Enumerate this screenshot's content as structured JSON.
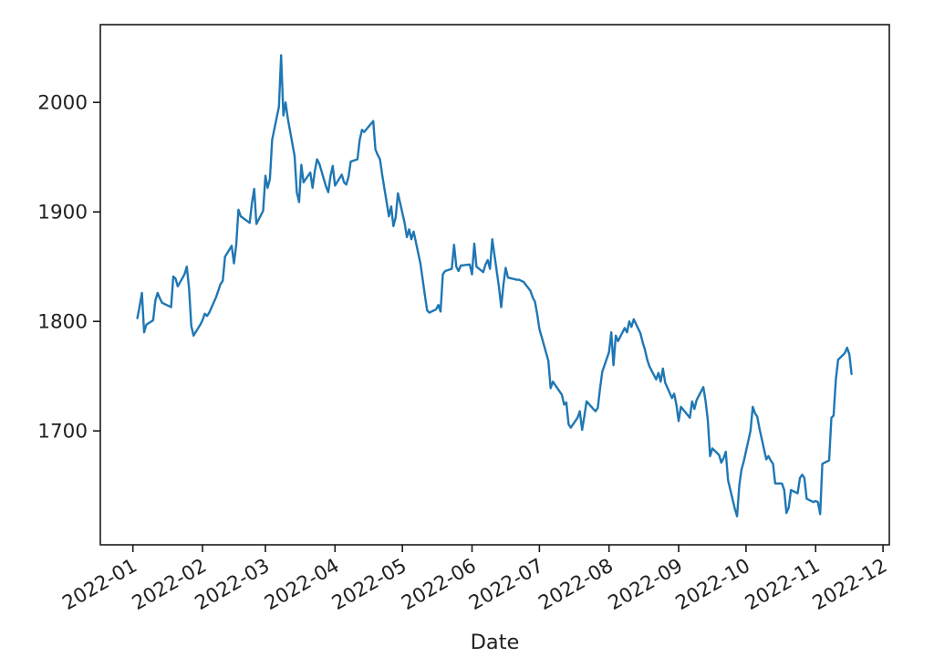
{
  "figure": {
    "background": "#ffffff",
    "axis_color": "#1a1a1a",
    "tick_label_color": "#222222"
  },
  "chart_data": {
    "type": "line",
    "title": "",
    "xlabel": "Date",
    "ylabel": "",
    "grid": false,
    "legend": false,
    "line_color": "#1f77b4",
    "x_tick_labels": [
      "2022-01",
      "2022-02",
      "2022-03",
      "2022-04",
      "2022-05",
      "2022-06",
      "2022-07",
      "2022-08",
      "2022-09",
      "2022-10",
      "2022-11",
      "2022-12"
    ],
    "y_tick_labels": [
      1700,
      1800,
      1900,
      2000
    ],
    "ylim": [
      1596,
      2071
    ],
    "xlim_day_offsets": [
      -14.5,
      336.8
    ],
    "x_tick_rotation_deg": 30,
    "series": [
      {
        "name": "price",
        "color": "#1f77b4",
        "dates": [
          "2022-01-03",
          "2022-01-04",
          "2022-01-05",
          "2022-01-06",
          "2022-01-07",
          "2022-01-10",
          "2022-01-11",
          "2022-01-12",
          "2022-01-13",
          "2022-01-14",
          "2022-01-18",
          "2022-01-19",
          "2022-01-20",
          "2022-01-21",
          "2022-01-24",
          "2022-01-25",
          "2022-01-26",
          "2022-01-27",
          "2022-01-28",
          "2022-01-31",
          "2022-02-01",
          "2022-02-02",
          "2022-02-03",
          "2022-02-04",
          "2022-02-07",
          "2022-02-08",
          "2022-02-09",
          "2022-02-10",
          "2022-02-11",
          "2022-02-14",
          "2022-02-15",
          "2022-02-16",
          "2022-02-17",
          "2022-02-18",
          "2022-02-22",
          "2022-02-23",
          "2022-02-24",
          "2022-02-25",
          "2022-02-28",
          "2022-03-01",
          "2022-03-02",
          "2022-03-03",
          "2022-03-04",
          "2022-03-07",
          "2022-03-08",
          "2022-03-09",
          "2022-03-10",
          "2022-03-11",
          "2022-03-14",
          "2022-03-15",
          "2022-03-16",
          "2022-03-17",
          "2022-03-18",
          "2022-03-21",
          "2022-03-22",
          "2022-03-23",
          "2022-03-24",
          "2022-03-25",
          "2022-03-28",
          "2022-03-29",
          "2022-03-30",
          "2022-03-31",
          "2022-04-01",
          "2022-04-04",
          "2022-04-05",
          "2022-04-06",
          "2022-04-07",
          "2022-04-08",
          "2022-04-11",
          "2022-04-12",
          "2022-04-13",
          "2022-04-14",
          "2022-04-18",
          "2022-04-19",
          "2022-04-20",
          "2022-04-21",
          "2022-04-22",
          "2022-04-25",
          "2022-04-26",
          "2022-04-27",
          "2022-04-28",
          "2022-04-29",
          "2022-05-02",
          "2022-05-03",
          "2022-05-04",
          "2022-05-05",
          "2022-05-06",
          "2022-05-09",
          "2022-05-10",
          "2022-05-11",
          "2022-05-12",
          "2022-05-13",
          "2022-05-16",
          "2022-05-17",
          "2022-05-18",
          "2022-05-19",
          "2022-05-20",
          "2022-05-23",
          "2022-05-24",
          "2022-05-25",
          "2022-05-26",
          "2022-05-27",
          "2022-05-31",
          "2022-06-01",
          "2022-06-02",
          "2022-06-03",
          "2022-06-06",
          "2022-06-07",
          "2022-06-08",
          "2022-06-09",
          "2022-06-10",
          "2022-06-13",
          "2022-06-14",
          "2022-06-15",
          "2022-06-16",
          "2022-06-17",
          "2022-06-21",
          "2022-06-22",
          "2022-06-23",
          "2022-06-24",
          "2022-06-27",
          "2022-06-28",
          "2022-06-29",
          "2022-06-30",
          "2022-07-01",
          "2022-07-05",
          "2022-07-06",
          "2022-07-07",
          "2022-07-08",
          "2022-07-11",
          "2022-07-12",
          "2022-07-13",
          "2022-07-14",
          "2022-07-15",
          "2022-07-18",
          "2022-07-19",
          "2022-07-20",
          "2022-07-21",
          "2022-07-22",
          "2022-07-25",
          "2022-07-26",
          "2022-07-27",
          "2022-07-28",
          "2022-07-29",
          "2022-08-01",
          "2022-08-02",
          "2022-08-03",
          "2022-08-04",
          "2022-08-05",
          "2022-08-08",
          "2022-08-09",
          "2022-08-10",
          "2022-08-11",
          "2022-08-12",
          "2022-08-15",
          "2022-08-16",
          "2022-08-17",
          "2022-08-18",
          "2022-08-19",
          "2022-08-22",
          "2022-08-23",
          "2022-08-24",
          "2022-08-25",
          "2022-08-26",
          "2022-08-29",
          "2022-08-30",
          "2022-08-31",
          "2022-09-01",
          "2022-09-02",
          "2022-09-06",
          "2022-09-07",
          "2022-09-08",
          "2022-09-09",
          "2022-09-12",
          "2022-09-13",
          "2022-09-14",
          "2022-09-15",
          "2022-09-16",
          "2022-09-19",
          "2022-09-20",
          "2022-09-21",
          "2022-09-22",
          "2022-09-23",
          "2022-09-26",
          "2022-09-27",
          "2022-09-28",
          "2022-09-29",
          "2022-09-30",
          "2022-10-03",
          "2022-10-04",
          "2022-10-05",
          "2022-10-06",
          "2022-10-07",
          "2022-10-10",
          "2022-10-11",
          "2022-10-12",
          "2022-10-13",
          "2022-10-14",
          "2022-10-17",
          "2022-10-18",
          "2022-10-19",
          "2022-10-20",
          "2022-10-21",
          "2022-10-24",
          "2022-10-25",
          "2022-10-26",
          "2022-10-27",
          "2022-10-28",
          "2022-10-31",
          "2022-11-01",
          "2022-11-02",
          "2022-11-03",
          "2022-11-04",
          "2022-11-07",
          "2022-11-08",
          "2022-11-09",
          "2022-11-10",
          "2022-11-11",
          "2022-11-14",
          "2022-11-15",
          "2022-11-16",
          "2022-11-17"
        ],
        "values": [
          1803,
          1814,
          1826,
          1790,
          1797,
          1801,
          1819,
          1826,
          1821,
          1817,
          1813,
          1841,
          1839,
          1832,
          1843,
          1850,
          1830,
          1796,
          1787,
          1797,
          1801,
          1807,
          1805,
          1808,
          1822,
          1828,
          1834,
          1837,
          1859,
          1869,
          1853,
          1870,
          1902,
          1896,
          1890,
          1908,
          1921,
          1889,
          1901,
          1933,
          1922,
          1930,
          1966,
          1996,
          2043,
          1988,
          2000,
          1985,
          1951,
          1918,
          1909,
          1943,
          1927,
          1936,
          1922,
          1937,
          1948,
          1944,
          1923,
          1918,
          1933,
          1942,
          1924,
          1934,
          1927,
          1925,
          1932,
          1946,
          1948,
          1966,
          1975,
          1973,
          1983,
          1957,
          1952,
          1948,
          1934,
          1896,
          1905,
          1887,
          1895,
          1917,
          1890,
          1877,
          1884,
          1875,
          1882,
          1853,
          1839,
          1824,
          1810,
          1808,
          1811,
          1815,
          1809,
          1843,
          1846,
          1848,
          1870,
          1850,
          1846,
          1851,
          1852,
          1843,
          1871,
          1850,
          1845,
          1852,
          1856,
          1848,
          1875,
          1831,
          1813,
          1834,
          1849,
          1840,
          1838,
          1838,
          1837,
          1836,
          1828,
          1822,
          1818,
          1807,
          1793,
          1764,
          1739,
          1745,
          1742,
          1733,
          1724,
          1726,
          1706,
          1703,
          1712,
          1718,
          1701,
          1713,
          1727,
          1720,
          1718,
          1721,
          1739,
          1754,
          1772,
          1790,
          1760,
          1787,
          1782,
          1794,
          1790,
          1800,
          1795,
          1802,
          1789,
          1781,
          1774,
          1765,
          1759,
          1747,
          1753,
          1745,
          1757,
          1744,
          1730,
          1734,
          1724,
          1709,
          1722,
          1712,
          1727,
          1720,
          1728,
          1740,
          1727,
          1710,
          1677,
          1684,
          1678,
          1671,
          1675,
          1681,
          1655,
          1629,
          1622,
          1650,
          1665,
          1672,
          1700,
          1722,
          1716,
          1713,
          1702,
          1674,
          1677,
          1673,
          1670,
          1652,
          1652,
          1646,
          1625,
          1630,
          1646,
          1643,
          1657,
          1660,
          1657,
          1638,
          1635,
          1636,
          1635,
          1624,
          1670,
          1673,
          1712,
          1714,
          1747,
          1765,
          1771,
          1776,
          1770,
          1752
        ]
      }
    ]
  }
}
